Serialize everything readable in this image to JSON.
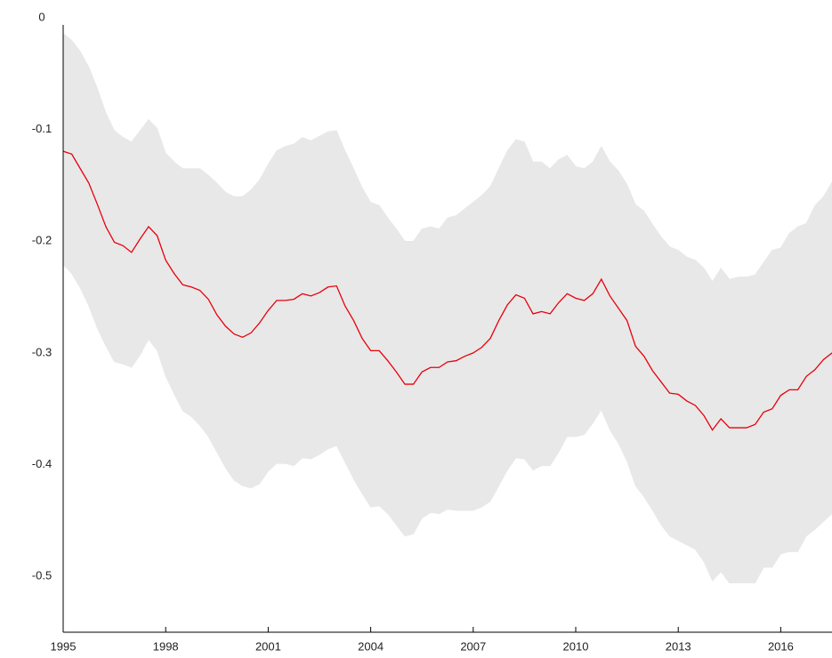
{
  "chart_data": {
    "type": "band-line",
    "x": [
      1995,
      1995.25,
      1995.5,
      1995.75,
      1996,
      1996.25,
      1996.5,
      1996.75,
      1997,
      1997.25,
      1997.5,
      1997.75,
      1998,
      1998.25,
      1998.5,
      1998.75,
      1999,
      1999.25,
      1999.5,
      1999.75,
      2000,
      2000.25,
      2000.5,
      2000.75,
      2001,
      2001.25,
      2001.5,
      2001.75,
      2002,
      2002.25,
      2002.5,
      2002.75,
      2003,
      2003.25,
      2003.5,
      2003.75,
      2004,
      2004.25,
      2004.5,
      2004.75,
      2005,
      2005.25,
      2005.5,
      2005.75,
      2006,
      2006.25,
      2006.5,
      2006.75,
      2007,
      2007.25,
      2007.5,
      2007.75,
      2008,
      2008.25,
      2008.5,
      2008.75,
      2009,
      2009.25,
      2009.5,
      2009.75,
      2010,
      2010.25,
      2010.5,
      2010.75,
      2011,
      2011.25,
      2011.5,
      2011.75,
      2012,
      2012.25,
      2012.5,
      2012.75,
      2013,
      2013.25,
      2013.5,
      2013.75,
      2014,
      2014.25,
      2014.5,
      2014.75,
      2015,
      2015.25,
      2015.5,
      2015.75,
      2016,
      2016.25,
      2016.5,
      2016.75,
      2017,
      2017.25,
      2017.5
    ],
    "line": {
      "color": "#e8000b",
      "values": [
        -0.1195,
        -0.122,
        -0.135,
        -0.148,
        -0.167,
        -0.187,
        -0.201,
        -0.204,
        -0.21,
        -0.198,
        -0.187,
        -0.195,
        -0.217,
        -0.229,
        -0.239,
        -0.241,
        -0.244,
        -0.252,
        -0.266,
        -0.276,
        -0.283,
        -0.286,
        -0.282,
        -0.273,
        -0.262,
        -0.253,
        -0.253,
        -0.252,
        -0.247,
        -0.249,
        -0.246,
        -0.241,
        -0.24,
        -0.258,
        -0.271,
        -0.287,
        -0.298,
        -0.298,
        -0.307,
        -0.317,
        -0.328,
        -0.328,
        -0.317,
        -0.313,
        -0.313,
        -0.308,
        -0.307,
        -0.303,
        -0.3,
        -0.295,
        -0.287,
        -0.271,
        -0.257,
        -0.248,
        -0.251,
        -0.265,
        -0.263,
        -0.265,
        -0.255,
        -0.247,
        -0.251,
        -0.253,
        -0.247,
        -0.234,
        -0.249,
        -0.26,
        -0.271,
        -0.294,
        -0.303,
        -0.316,
        -0.326,
        -0.336,
        -0.337,
        -0.343,
        -0.347,
        -0.356,
        -0.369,
        -0.359,
        -0.367,
        -0.367,
        -0.367,
        -0.364,
        -0.353,
        -0.35,
        -0.338,
        -0.333,
        -0.333,
        -0.321,
        -0.315,
        -0.306,
        -0.3
      ]
    },
    "band": {
      "color": "#e8e8e8",
      "upper": [
        -0.014,
        -0.02,
        -0.03,
        -0.044,
        -0.063,
        -0.085,
        -0.101,
        -0.107,
        -0.111,
        -0.101,
        -0.091,
        -0.099,
        -0.121,
        -0.129,
        -0.135,
        -0.135,
        -0.135,
        -0.141,
        -0.148,
        -0.156,
        -0.16,
        -0.16,
        -0.154,
        -0.145,
        -0.131,
        -0.119,
        -0.115,
        -0.113,
        -0.107,
        -0.11,
        -0.106,
        -0.102,
        -0.101,
        -0.119,
        -0.135,
        -0.152,
        -0.165,
        -0.168,
        -0.179,
        -0.189,
        -0.2,
        -0.2,
        -0.189,
        -0.187,
        -0.189,
        -0.179,
        -0.177,
        -0.171,
        -0.165,
        -0.159,
        -0.151,
        -0.135,
        -0.119,
        -0.109,
        -0.111,
        -0.129,
        -0.129,
        -0.135,
        -0.127,
        -0.123,
        -0.133,
        -0.135,
        -0.129,
        -0.115,
        -0.129,
        -0.137,
        -0.149,
        -0.167,
        -0.173,
        -0.185,
        -0.196,
        -0.205,
        -0.208,
        -0.214,
        -0.217,
        -0.224,
        -0.236,
        -0.224,
        -0.234,
        -0.232,
        -0.232,
        -0.23,
        -0.219,
        -0.208,
        -0.206,
        -0.193,
        -0.187,
        -0.184,
        -0.168,
        -0.16,
        -0.147
      ],
      "lower": [
        -0.221,
        -0.229,
        -0.242,
        -0.258,
        -0.278,
        -0.294,
        -0.308,
        -0.31,
        -0.313,
        -0.302,
        -0.288,
        -0.298,
        -0.321,
        -0.337,
        -0.352,
        -0.357,
        -0.365,
        -0.375,
        -0.389,
        -0.403,
        -0.414,
        -0.419,
        -0.421,
        -0.417,
        -0.406,
        -0.399,
        -0.399,
        -0.401,
        -0.394,
        -0.395,
        -0.391,
        -0.386,
        -0.383,
        -0.398,
        -0.413,
        -0.426,
        -0.438,
        -0.437,
        -0.444,
        -0.454,
        -0.464,
        -0.462,
        -0.448,
        -0.443,
        -0.444,
        -0.44,
        -0.441,
        -0.441,
        -0.441,
        -0.438,
        -0.433,
        -0.419,
        -0.405,
        -0.394,
        -0.395,
        -0.405,
        -0.401,
        -0.401,
        -0.389,
        -0.375,
        -0.375,
        -0.373,
        -0.363,
        -0.351,
        -0.369,
        -0.381,
        -0.397,
        -0.419,
        -0.429,
        -0.441,
        -0.454,
        -0.464,
        -0.468,
        -0.472,
        -0.476,
        -0.487,
        -0.504,
        -0.496,
        -0.506,
        -0.506,
        -0.506,
        -0.506,
        -0.492,
        -0.492,
        -0.48,
        -0.478,
        -0.478,
        -0.464,
        -0.458,
        -0.451,
        -0.444
      ]
    },
    "xlim": [
      1995,
      2017.5
    ],
    "xticks": [
      1995,
      1998,
      2001,
      2004,
      2007,
      2010,
      2013,
      2016
    ],
    "ylim": [
      -0.55,
      0
    ],
    "yticks": [
      0,
      -0.1,
      -0.2,
      -0.3,
      -0.4,
      -0.5
    ]
  }
}
